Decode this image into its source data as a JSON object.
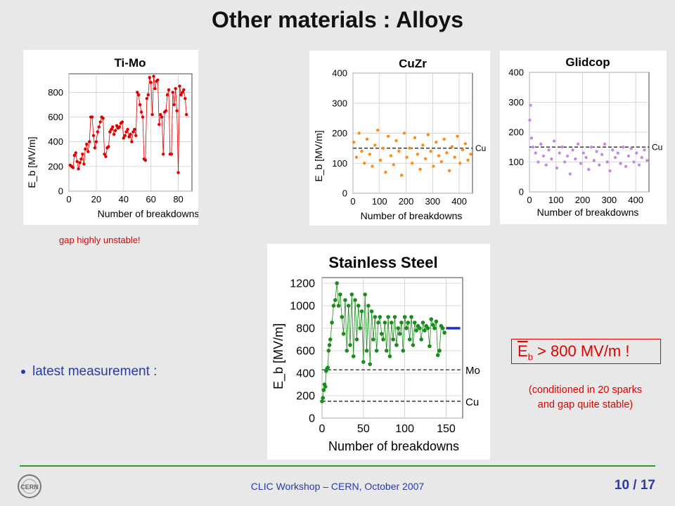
{
  "slide": {
    "title": "Other materials : Alloys",
    "unstable_note": "gap highly unstable!",
    "bullet": "latest measurement :",
    "result": {
      "symbol": "E",
      "subscript": "b",
      "text": " > 800 MV/m !"
    },
    "conditioning_note_line1": "(conditioned in 20 sparks",
    "conditioning_note_line2": "and gap quite stable)",
    "footer": "CLIC Workshop – CERN, October 2007",
    "page": "10 / 17",
    "logo_label": "CERN",
    "colors": {
      "title": "#111111",
      "accent_red": "#e00000",
      "footer_blue": "#2a3aa6",
      "footer_line": "#2e9a2e"
    }
  },
  "chart_data": [
    {
      "type": "line",
      "title": "Ti-Mo",
      "xlabel": "Number of breakdowns",
      "ylabel": "E_b [MV/m]",
      "xlim": [
        0,
        90
      ],
      "ylim": [
        0,
        950
      ],
      "xticks": [
        0,
        20,
        40,
        60,
        80
      ],
      "yticks": [
        0,
        200,
        400,
        600,
        800
      ],
      "grid": true,
      "series": [
        {
          "color": "#e00000",
          "x": [
            1,
            2,
            3,
            4,
            5,
            6,
            7,
            8,
            9,
            10,
            11,
            12,
            13,
            14,
            15,
            16,
            17,
            18,
            19,
            20,
            21,
            22,
            23,
            24,
            25,
            26,
            27,
            28,
            29,
            30,
            31,
            32,
            33,
            34,
            35,
            36,
            37,
            38,
            39,
            40,
            41,
            42,
            43,
            44,
            45,
            46,
            47,
            48,
            49,
            50,
            51,
            52,
            53,
            54,
            55,
            56,
            57,
            58,
            59,
            60,
            61,
            62,
            63,
            64,
            65,
            66,
            67,
            68,
            69,
            70,
            71,
            72,
            73,
            74,
            75,
            76,
            77,
            78,
            79,
            80,
            81,
            82,
            83,
            84,
            85,
            86
          ],
          "values": [
            210,
            200,
            190,
            290,
            310,
            240,
            180,
            230,
            260,
            300,
            220,
            340,
            380,
            320,
            400,
            600,
            600,
            450,
            350,
            400,
            480,
            520,
            560,
            600,
            590,
            300,
            280,
            350,
            360,
            480,
            500,
            520,
            460,
            490,
            530,
            510,
            520,
            550,
            560,
            430,
            450,
            480,
            500,
            440,
            460,
            400,
            480,
            500,
            450,
            800,
            780,
            700,
            640,
            600,
            260,
            250,
            750,
            780,
            920,
            880,
            620,
            930,
            830,
            890,
            900,
            540,
            620,
            600,
            300,
            640,
            650,
            780,
            820,
            300,
            300,
            800,
            700,
            830,
            650,
            150,
            850,
            780,
            800,
            820,
            750,
            620
          ]
        }
      ]
    },
    {
      "type": "scatter",
      "title": "CuZr",
      "xlabel": "Number of breakdowns",
      "ylabel": "E_b [MV/m]",
      "xlim": [
        0,
        450
      ],
      "ylim": [
        0,
        400
      ],
      "xticks": [
        0,
        100,
        200,
        300,
        400
      ],
      "yticks": [
        0,
        100,
        200,
        300,
        400
      ],
      "grid": true,
      "reference_lines": [
        {
          "label": "Cu",
          "y": 150
        }
      ],
      "series": [
        {
          "color": "#ff8c1a",
          "x": [
            3,
            13,
            23,
            33,
            43,
            53,
            63,
            73,
            83,
            93,
            103,
            113,
            123,
            133,
            143,
            153,
            163,
            173,
            183,
            193,
            203,
            213,
            223,
            233,
            243,
            253,
            263,
            273,
            283,
            293,
            303,
            313,
            323,
            333,
            343,
            353,
            363,
            373,
            383,
            393,
            403,
            413,
            423,
            433,
            443
          ],
          "values": [
            170,
            120,
            200,
            140,
            100,
            180,
            130,
            90,
            160,
            210,
            110,
            150,
            70,
            190,
            125,
            95,
            175,
            140,
            60,
            200,
            120,
            150,
            100,
            185,
            130,
            80,
            160,
            115,
            195,
            140,
            90,
            170,
            125,
            105,
            180,
            135,
            75,
            155,
            120,
            190,
            100,
            145,
            165,
            110,
            130
          ]
        }
      ]
    },
    {
      "type": "scatter",
      "title": "Glidcop",
      "xlabel": "Number of breakdowns",
      "ylabel": "",
      "xlim": [
        0,
        450
      ],
      "ylim": [
        0,
        400
      ],
      "xticks": [
        0,
        100,
        200,
        300,
        400
      ],
      "yticks": [
        0,
        100,
        200,
        300,
        400
      ],
      "grid": true,
      "reference_lines": [
        {
          "label": "Cu",
          "y": 150
        }
      ],
      "series": [
        {
          "color": "#c38be6",
          "x": [
            1,
            4,
            8,
            13,
            23,
            33,
            43,
            53,
            63,
            73,
            83,
            93,
            103,
            113,
            123,
            133,
            143,
            153,
            163,
            173,
            183,
            193,
            203,
            213,
            223,
            233,
            243,
            253,
            263,
            273,
            283,
            293,
            303,
            313,
            323,
            333,
            343,
            353,
            363,
            373,
            383,
            393,
            403,
            413,
            423,
            433,
            443
          ],
          "values": [
            240,
            290,
            180,
            150,
            130,
            100,
            160,
            120,
            90,
            140,
            110,
            170,
            80,
            130,
            150,
            100,
            120,
            60,
            140,
            110,
            160,
            95,
            130,
            115,
            75,
            150,
            105,
            135,
            90,
            125,
            160,
            100,
            70,
            140,
            115,
            130,
            95,
            150,
            85,
            120,
            145,
            100,
            130,
            90,
            115,
            140,
            105
          ]
        }
      ]
    },
    {
      "type": "line",
      "title": "Stainless Steel",
      "xlabel": "Number of breakdowns",
      "ylabel": "E_b [MV/m]",
      "xlim": [
        0,
        170
      ],
      "ylim": [
        0,
        1250
      ],
      "xticks": [
        0,
        50,
        100,
        150
      ],
      "yticks": [
        0,
        200,
        400,
        600,
        800,
        1000,
        1200
      ],
      "grid": true,
      "reference_lines": [
        {
          "label": "Mo",
          "y": 430
        },
        {
          "label": "Cu",
          "y": 150
        }
      ],
      "result_marker": {
        "y": 800,
        "x_from": 150,
        "x_to": 167,
        "color": "#1a2ecc"
      },
      "series": [
        {
          "color": "#1a8c1a",
          "x": [
            0,
            1,
            2,
            3,
            4,
            5,
            6,
            7,
            8,
            9,
            10,
            12,
            14,
            16,
            18,
            20,
            22,
            24,
            26,
            28,
            30,
            32,
            34,
            36,
            38,
            40,
            42,
            44,
            46,
            48,
            50,
            52,
            54,
            56,
            58,
            60,
            62,
            64,
            66,
            68,
            70,
            72,
            74,
            76,
            78,
            80,
            82,
            84,
            86,
            88,
            90,
            92,
            94,
            96,
            98,
            100,
            102,
            104,
            106,
            108,
            110,
            112,
            114,
            116,
            118,
            120,
            122,
            124,
            126,
            128,
            130,
            132,
            134,
            136,
            138,
            140,
            142,
            144,
            146,
            148
          ],
          "values": [
            150,
            180,
            250,
            300,
            280,
            420,
            440,
            450,
            600,
            650,
            700,
            850,
            1000,
            1050,
            1200,
            1000,
            1100,
            900,
            750,
            1050,
            600,
            1000,
            650,
            1100,
            550,
            1050,
            700,
            1000,
            800,
            950,
            500,
            1100,
            600,
            1000,
            480,
            950,
            700,
            900,
            600,
            850,
            900,
            750,
            700,
            850,
            600,
            900,
            550,
            850,
            700,
            900,
            650,
            800,
            750,
            850,
            600,
            900,
            800,
            850,
            700,
            900,
            650,
            850,
            780,
            820,
            800,
            700,
            850,
            780,
            820,
            800,
            640,
            880,
            830,
            800,
            860,
            560,
            600,
            820,
            800,
            760
          ]
        }
      ]
    }
  ]
}
